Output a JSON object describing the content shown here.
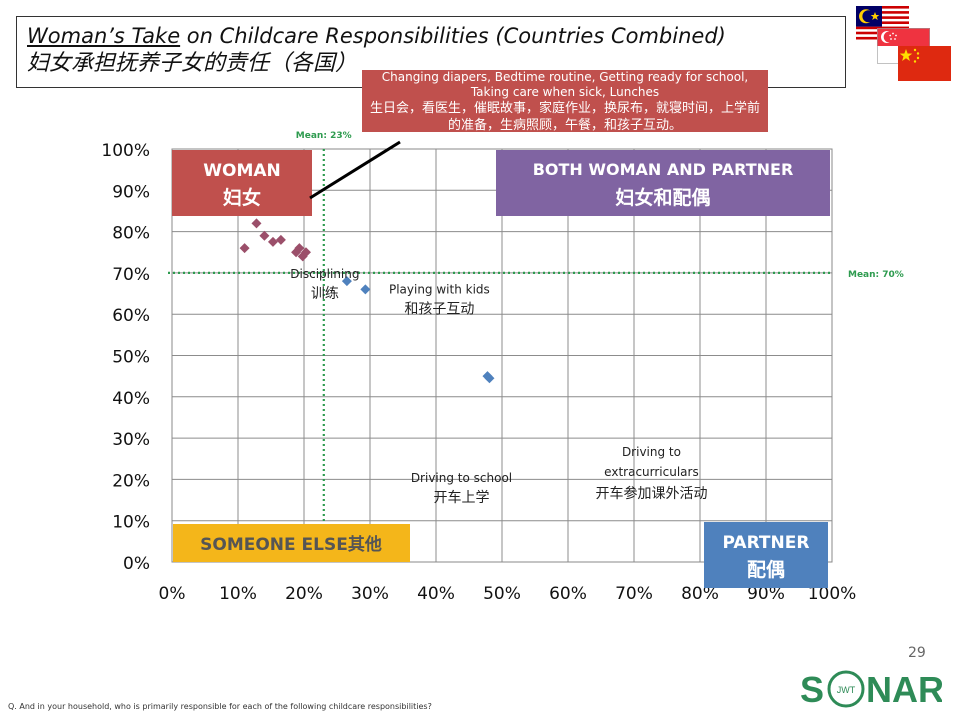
{
  "title": {
    "underlined": "Woman’s Take",
    "rest": " on Childcare Responsibilities (Countries Combined)",
    "chinese": "妇女承担抚养子女的责任（各国）"
  },
  "callout": {
    "english": "Changing diapers, Bedtime routine, Getting ready for school, Taking care when sick, Lunches",
    "chinese": "生日会，看医生，催眠故事，家庭作业，换尿布，就寝时间，上学前的准备，生病照顾，午餐，和孩子互动。"
  },
  "quadrants": {
    "woman": {
      "en": "WOMAN",
      "cn": "妇女",
      "color": "#c0504d"
    },
    "both": {
      "en": "BOTH WOMAN AND PARTNER",
      "cn": "妇女和配偶",
      "color": "#8064a2"
    },
    "someone_else": {
      "text": "SOMEONE ELSE其他",
      "color": "#f4b61a",
      "text_color": "#555555"
    },
    "partner": {
      "en": "PARTNER",
      "cn": "配偶",
      "color": "#4f81bd"
    }
  },
  "flags": [
    "malaysia-flag",
    "singapore-flag",
    "china-flag"
  ],
  "chart_data": {
    "type": "scatter",
    "xlim": [
      0,
      100
    ],
    "ylim": [
      0,
      100
    ],
    "x_ticks": [
      "0%",
      "10%",
      "20%",
      "30%",
      "40%",
      "50%",
      "60%",
      "70%",
      "80%",
      "90%",
      "100%"
    ],
    "y_ticks": [
      "0%",
      "10%",
      "20%",
      "30%",
      "40%",
      "50%",
      "60%",
      "70%",
      "80%",
      "90%",
      "100%"
    ],
    "grid": true,
    "mean_x": {
      "value": 23,
      "label": "Mean: 23%"
    },
    "mean_y": {
      "value": 70,
      "label": "Mean: 70%"
    },
    "series": [
      {
        "name": "woman-cluster",
        "color": "#9b4f6a",
        "points": [
          {
            "x": 11,
            "y": 76
          },
          {
            "x": 12.8,
            "y": 82
          },
          {
            "x": 14,
            "y": 79
          },
          {
            "x": 15.3,
            "y": 77.5
          },
          {
            "x": 16.5,
            "y": 78
          },
          {
            "x": 18.8,
            "y": 75
          },
          {
            "x": 19.3,
            "y": 76
          },
          {
            "x": 19.8,
            "y": 74
          },
          {
            "x": 20.3,
            "y": 75
          }
        ]
      },
      {
        "name": "labelled-activities",
        "color": "#4f81bd",
        "points": [
          {
            "x": 26.5,
            "y": 68,
            "en": "Disciplining",
            "cn": "训练"
          },
          {
            "x": 29.3,
            "y": 66,
            "en": "Playing with kids",
            "cn": "和孩子互动"
          },
          {
            "x": 47.8,
            "y": 45,
            "en": "Driving to school",
            "cn": "开车上学"
          },
          {
            "x": 48.1,
            "y": 44.5,
            "en": "Driving to extracurriculars",
            "cn": "开车参加课外活动"
          }
        ]
      }
    ]
  },
  "page_number": "29",
  "footnote": "Q. And in your household, who is primarily responsible for each of the following childcare responsibilities?",
  "logo": {
    "part1": "S",
    "part2": "NAR",
    "inner": "JWT",
    "color": "#2e8b57"
  }
}
